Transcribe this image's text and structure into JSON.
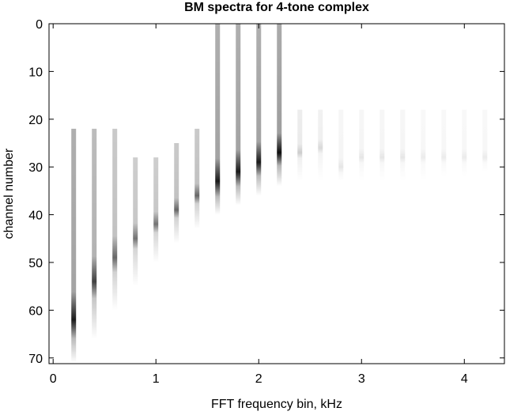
{
  "chart_data": {
    "type": "spectrogram",
    "title": "BM spectra for 4-tone complex",
    "x_label": "FFT frequency bin, kHz",
    "y_label": "channel number",
    "xlim": [
      -0.04,
      4.39
    ],
    "xticks": [
      0,
      1,
      2,
      3,
      4
    ],
    "ylim": [
      0,
      71.2
    ],
    "yticks": [
      0,
      10,
      20,
      30,
      40,
      50,
      60,
      70
    ],
    "y_reversed": true,
    "color": "#000000",
    "x": [
      0.2,
      0.4,
      0.6,
      0.8,
      1.0,
      1.2,
      1.4,
      1.6,
      1.8,
      2.0,
      2.2,
      2.4,
      2.6,
      2.8,
      3.0,
      3.2,
      3.4,
      3.6,
      3.8,
      4.0,
      4.2
    ],
    "channel_start": [
      22,
      22,
      22,
      28,
      28,
      25,
      22,
      0,
      0,
      0,
      0,
      18,
      18,
      18,
      18,
      18,
      18,
      18,
      18,
      18,
      18
    ],
    "channel_end": [
      71,
      66,
      60,
      55,
      50,
      46,
      43,
      40,
      38,
      36,
      34,
      33,
      33,
      33,
      33,
      33,
      33,
      33,
      32,
      32,
      31
    ],
    "peak_channel": [
      62,
      54,
      49,
      45,
      42,
      39,
      36,
      33,
      31,
      29,
      27,
      27,
      26,
      30,
      28,
      28,
      28,
      28,
      28,
      28,
      28
    ],
    "peak_intensity": [
      0.9,
      0.75,
      0.6,
      0.55,
      0.55,
      0.6,
      0.6,
      0.9,
      0.9,
      0.9,
      0.95,
      0.2,
      0.15,
      0.1,
      0.1,
      0.1,
      0.1,
      0.08,
      0.08,
      0.08,
      0.08
    ]
  }
}
